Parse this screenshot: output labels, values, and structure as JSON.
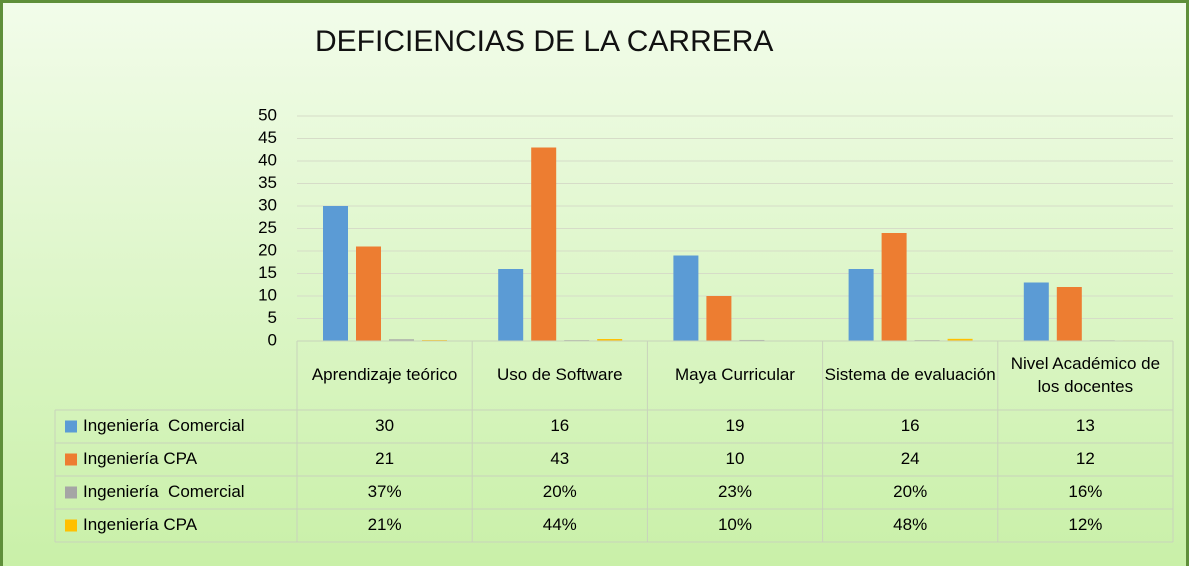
{
  "chart_data": {
    "type": "bar",
    "title": "DEFICIENCIAS DE LA CARRERA",
    "categories": [
      "Aprendizaje teórico",
      "Uso de Software",
      "Maya Curricular",
      "Sistema de evaluación",
      "Nivel Académico de los docentes"
    ],
    "series": [
      {
        "name": "Ingeniería  Comercial",
        "color": "#5b9bd5",
        "values": [
          30,
          16,
          19,
          16,
          13
        ]
      },
      {
        "name": "Ingeniería CPA",
        "color": "#ed7d31",
        "values": [
          21,
          43,
          10,
          24,
          12
        ]
      },
      {
        "name": "Ingeniería  Comercial",
        "color": "#a5a5a5",
        "values": [
          0.37,
          0.2,
          0.23,
          0.2,
          0.16
        ],
        "value_labels": [
          "37%",
          "20%",
          "23%",
          "20%",
          "16%"
        ]
      },
      {
        "name": "Ingeniería CPA",
        "color": "#ffc000",
        "values": [
          0.21,
          0.44,
          0.1,
          0.48,
          0.12
        ],
        "value_labels": [
          "21%",
          "44%",
          "10%",
          "48%",
          "12%"
        ]
      }
    ],
    "ylim": [
      0,
      50
    ],
    "yticks": [
      0,
      5,
      10,
      15,
      20,
      25,
      30,
      35,
      40,
      45,
      50
    ],
    "grid": true
  }
}
